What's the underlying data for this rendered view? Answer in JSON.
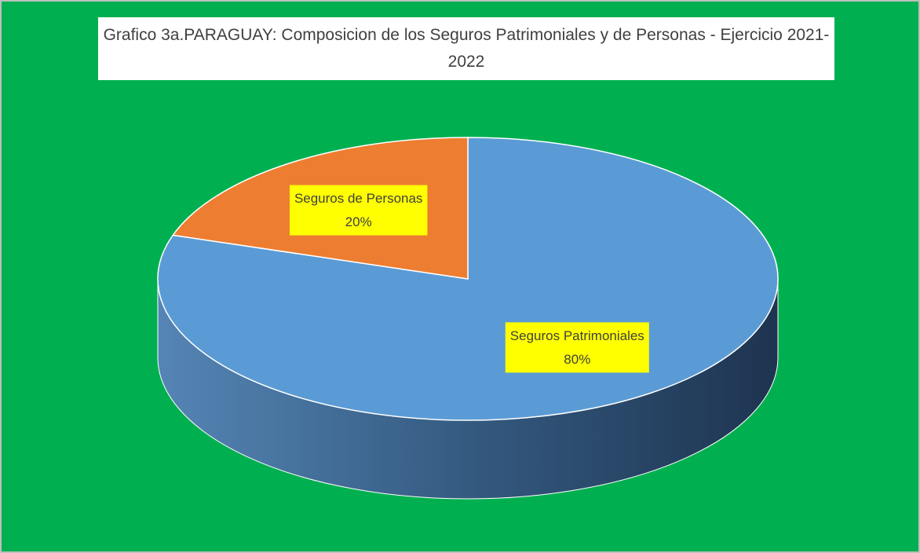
{
  "chart_data": {
    "type": "pie",
    "title": "Grafico 3a.PARAGUAY: Composicion de los Seguros Patrimoniales y de Personas - Ejercicio 2021-2022",
    "categories": [
      "Seguros Patrimoniales",
      "Seguros de Personas"
    ],
    "values": [
      80,
      20
    ],
    "value_labels": [
      "80%",
      "20%"
    ],
    "colors": [
      "#5b9bd5",
      "#ed7d31"
    ]
  }
}
